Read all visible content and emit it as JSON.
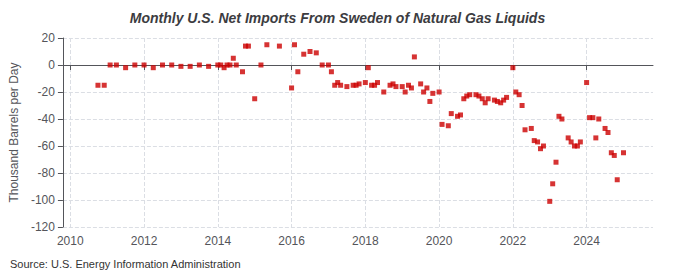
{
  "chart_data": {
    "type": "scatter",
    "title": "Monthly U.S. Net Imports From Sweden of Natural Gas Liquids",
    "ylabel": "Thousand Barrels per Day",
    "source": "Source: U.S. Energy Information Administration",
    "color": "#cc0000",
    "marker": "square",
    "grid": true,
    "xlim": [
      2009.8,
      2025.8
    ],
    "xticks": [
      2010,
      2012,
      2014,
      2016,
      2018,
      2020,
      2022,
      2024
    ],
    "ylim": [
      -120,
      20
    ],
    "yticks": [
      -120,
      -100,
      -80,
      -60,
      -40,
      -20,
      0,
      20
    ],
    "x": [
      2010.75,
      2010.92,
      2011.08,
      2011.25,
      2011.5,
      2011.75,
      2012.0,
      2012.25,
      2012.5,
      2012.75,
      2013.0,
      2013.25,
      2013.5,
      2013.75,
      2014.0,
      2014.08,
      2014.17,
      2014.25,
      2014.33,
      2014.42,
      2014.5,
      2014.67,
      2014.75,
      2014.83,
      2015.0,
      2015.17,
      2015.33,
      2015.67,
      2016.0,
      2016.08,
      2016.17,
      2016.33,
      2016.5,
      2016.67,
      2016.83,
      2017.0,
      2017.08,
      2017.17,
      2017.25,
      2017.33,
      2017.5,
      2017.67,
      2017.75,
      2017.83,
      2018.0,
      2018.08,
      2018.17,
      2018.25,
      2018.33,
      2018.5,
      2018.67,
      2018.75,
      2018.83,
      2019.0,
      2019.08,
      2019.17,
      2019.25,
      2019.33,
      2019.5,
      2019.58,
      2019.67,
      2019.75,
      2019.83,
      2020.0,
      2020.08,
      2020.25,
      2020.33,
      2020.5,
      2020.58,
      2020.67,
      2020.75,
      2020.83,
      2021.0,
      2021.08,
      2021.17,
      2021.25,
      2021.33,
      2021.5,
      2021.58,
      2021.67,
      2021.75,
      2021.83,
      2022.0,
      2022.08,
      2022.17,
      2022.25,
      2022.33,
      2022.5,
      2022.58,
      2022.67,
      2022.75,
      2022.83,
      2023.0,
      2023.08,
      2023.17,
      2023.25,
      2023.33,
      2023.5,
      2023.58,
      2023.67,
      2023.75,
      2023.83,
      2024.0,
      2024.08,
      2024.17,
      2024.25,
      2024.33,
      2024.5,
      2024.58,
      2024.67,
      2024.75,
      2024.83,
      2025.0
    ],
    "values": [
      -15,
      -15,
      0,
      0,
      -2,
      0,
      0,
      -2,
      0,
      0,
      -1,
      -1,
      0,
      -1,
      0,
      0,
      -2,
      0,
      0,
      5,
      0,
      -5,
      14,
      14,
      -25,
      0,
      15,
      14,
      -17,
      15,
      -5,
      8,
      10,
      9,
      0,
      0,
      -5,
      -15,
      -13,
      -15,
      -16,
      -15,
      -15,
      -14,
      -13,
      -2,
      -15,
      -15,
      -13,
      -20,
      -15,
      -14,
      -16,
      -16,
      -20,
      -15,
      -17,
      6,
      -14,
      -20,
      -17,
      -27,
      -21,
      -20,
      -44,
      -45,
      -36,
      -38,
      -37,
      -25,
      -23,
      -22,
      -22,
      -23,
      -25,
      -28,
      -25,
      -26,
      -27,
      -28,
      -26,
      -24,
      -2,
      -20,
      -22,
      -30,
      -48,
      -47,
      -56,
      -57,
      -62,
      -60,
      -101,
      -88,
      -72,
      -38,
      -40,
      -54,
      -57,
      -60,
      -60,
      -57,
      -13,
      -39,
      -39,
      -54,
      -40,
      -47,
      -50,
      -65,
      -67,
      -85,
      -65
    ]
  }
}
